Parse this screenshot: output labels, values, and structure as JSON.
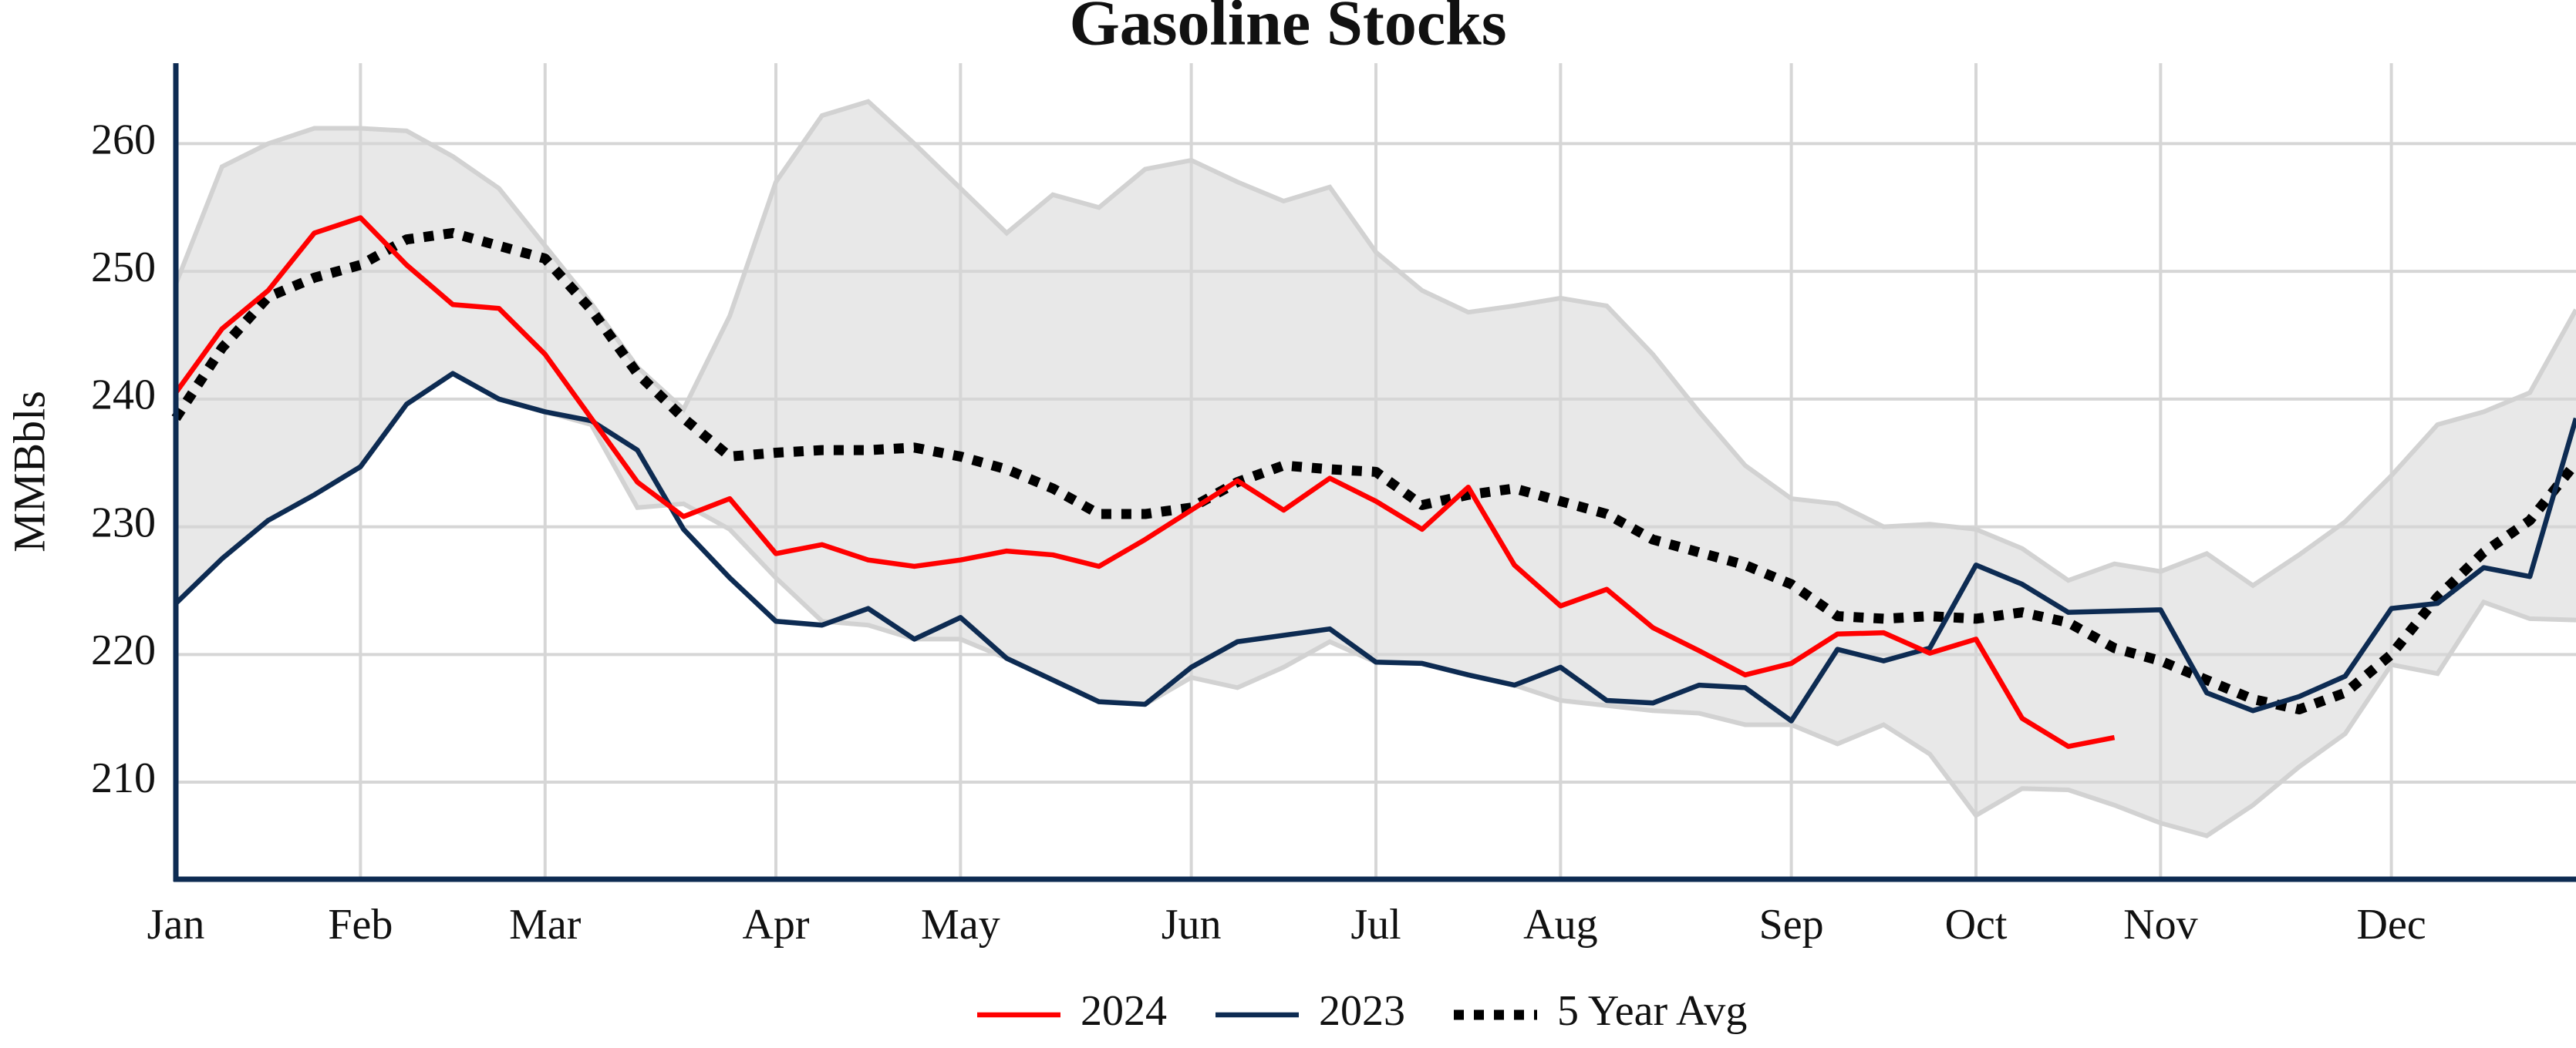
{
  "chart_data": {
    "type": "line",
    "title": "Gasoline Stocks",
    "y_label": "MMBbls",
    "categories": [
      "Jan",
      null,
      null,
      null,
      "Feb",
      null,
      null,
      null,
      "Mar",
      null,
      null,
      null,
      null,
      "Apr",
      null,
      null,
      null,
      "May",
      null,
      null,
      null,
      null,
      "Jun",
      null,
      null,
      null,
      "Jul",
      null,
      null,
      null,
      "Aug",
      null,
      null,
      null,
      null,
      "Sep",
      null,
      null,
      null,
      "Oct",
      null,
      null,
      null,
      "Nov",
      null,
      null,
      null,
      null,
      "Dec",
      null,
      null,
      null,
      null
    ],
    "series": [
      {
        "name": "2024",
        "color": "#ff0000",
        "style": "solid",
        "values": [
          240.5,
          245.5,
          248.5,
          253,
          254.2,
          250.5,
          247.4,
          247.1,
          243.5,
          238.5,
          233.5,
          230.8,
          232.2,
          227.9,
          228.6,
          227.4,
          226.9,
          227.4,
          228.1,
          227.8,
          226.9,
          229,
          231.3,
          233.6,
          231.3,
          233.8,
          232,
          229.8,
          233.1,
          227,
          223.8,
          225.1,
          222.1,
          220.3,
          218.4,
          219.3,
          221.6,
          221.7,
          220.1,
          221.2,
          215,
          212.8,
          213.5,
          null,
          null,
          null,
          null,
          null,
          null,
          null,
          null,
          null,
          null
        ]
      },
      {
        "name": "2023",
        "color": "#0d2b52",
        "style": "solid",
        "values": [
          224,
          227.5,
          230.5,
          232.5,
          234.7,
          239.6,
          242,
          240,
          239,
          238.3,
          236,
          229.8,
          226,
          222.6,
          222.3,
          223.6,
          221.2,
          222.9,
          219.7,
          218,
          216.3,
          216.1,
          219,
          221,
          221.5,
          222,
          219.4,
          219.3,
          218.4,
          217.6,
          219,
          216.4,
          216.2,
          217.6,
          217.4,
          214.8,
          220.4,
          219.5,
          220.5,
          227,
          225.5,
          223.3,
          223.4,
          223.5,
          217,
          215.6,
          216.7,
          218.3,
          223.6,
          224,
          226.8,
          226.1,
          238.5
        ]
      },
      {
        "name": "5 Year Avg",
        "color": "#000000",
        "style": "dotted",
        "values": [
          238.5,
          244,
          248,
          249.5,
          250.5,
          252.5,
          253,
          252,
          251,
          247,
          242,
          238.5,
          235.5,
          235.8,
          236,
          236,
          236.2,
          235.5,
          234.5,
          233,
          231,
          231,
          231.5,
          233.5,
          234.8,
          234.5,
          234.3,
          231.7,
          232.5,
          233,
          232,
          231,
          229,
          228,
          227,
          225.5,
          223,
          222.8,
          223,
          222.8,
          223.3,
          222.5,
          220.5,
          219.5,
          218,
          216.5,
          215.7,
          217,
          220,
          224.5,
          228,
          230.5,
          235
        ]
      }
    ],
    "range": {
      "color": "#e8e8e8",
      "edge_color": "#d2d2d2",
      "upper": [
        249,
        258.2,
        260,
        261.2,
        261.2,
        261,
        259,
        256.5,
        252,
        247.5,
        242.5,
        239.2,
        246.5,
        257,
        262.2,
        263.3,
        260,
        256.5,
        253,
        256,
        255,
        258,
        258.7,
        257,
        255.5,
        256.6,
        251.5,
        248.5,
        246.8,
        247.3,
        247.9,
        247.3,
        243.5,
        239,
        234.8,
        232.2,
        231.8,
        230,
        230.2,
        229.8,
        228.3,
        225.8,
        227.1,
        226.5,
        227.9,
        225.4,
        227.8,
        230.4,
        234,
        238,
        239,
        240.5,
        247
      ],
      "lower": [
        224,
        227.5,
        230.5,
        232.5,
        234.7,
        239.6,
        242,
        240,
        239,
        238,
        231.5,
        231.8,
        229.8,
        226,
        222.6,
        222.3,
        221.2,
        221.2,
        219.7,
        218,
        216.3,
        216.1,
        218.2,
        217.4,
        219,
        221,
        219.4,
        219.3,
        218.4,
        217.6,
        216.4,
        216,
        215.6,
        215.4,
        214.5,
        214.5,
        213,
        214.5,
        212.2,
        207.4,
        209.5,
        209.4,
        208.2,
        206.8,
        205.8,
        208.2,
        211.2,
        213.8,
        219.2,
        218.5,
        224.1,
        222.8,
        222.7
      ]
    },
    "ylim": [
      202.4,
      266.3
    ],
    "yticks": [
      210,
      220,
      230,
      240,
      250,
      260
    ],
    "grid": true,
    "legend": "bottom"
  }
}
